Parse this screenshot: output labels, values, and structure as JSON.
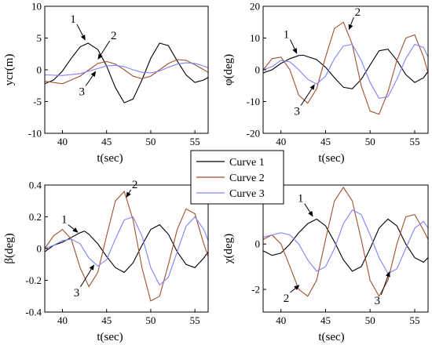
{
  "chart_data": [
    {
      "type": "line",
      "panel": "top-left",
      "xlabel": "t(sec)",
      "ylabel": "ycr(m)",
      "xlim": [
        38,
        56.5
      ],
      "ylim": [
        -10,
        10
      ],
      "xticks": [
        40,
        45,
        50,
        55
      ],
      "yticks": [
        -10,
        -5,
        0,
        5,
        10
      ],
      "series": [
        {
          "label": "1",
          "color": "#000000",
          "x": [
            38,
            39,
            40,
            41,
            42,
            42.9,
            44,
            45,
            46,
            47,
            48,
            49,
            50,
            51,
            52,
            53,
            54,
            55,
            56,
            56.5
          ],
          "y": [
            -2.2,
            -1.6,
            -0.2,
            1.8,
            3.6,
            4.2,
            3.2,
            0.6,
            -2.8,
            -5.2,
            -4.6,
            -1.6,
            1.8,
            4.2,
            3.8,
            1.4,
            -0.8,
            -2.0,
            -1.6,
            -1.2
          ]
        },
        {
          "label": "2",
          "color": "#a0522d",
          "x": [
            38,
            40,
            42,
            43,
            44,
            45,
            46,
            47,
            48,
            49,
            50,
            51,
            52,
            53,
            54,
            55,
            56,
            56.5
          ],
          "y": [
            -1.8,
            -2.2,
            -1.0,
            0.0,
            1.0,
            1.3,
            0.9,
            0.0,
            -1.0,
            -1.4,
            -1.0,
            0.0,
            1.0,
            1.6,
            1.5,
            0.8,
            0.0,
            -0.4
          ]
        },
        {
          "label": "3",
          "color": "#8080ff",
          "x": [
            38,
            40,
            42,
            44,
            45,
            46,
            47,
            48,
            49,
            50,
            51,
            52,
            53,
            54,
            55,
            56,
            56.5
          ],
          "y": [
            -0.8,
            -0.9,
            -0.6,
            0.2,
            0.6,
            0.7,
            0.5,
            0.0,
            -0.4,
            -0.5,
            -0.2,
            0.4,
            0.9,
            1.1,
            1.0,
            0.6,
            0.3
          ]
        }
      ],
      "annotations": [
        {
          "text": "1",
          "x": 41.2,
          "y": 7.4,
          "ax": 42.6,
          "ay": 4.6
        },
        {
          "text": "2",
          "x": 45.8,
          "y": 4.8,
          "ax": 44.0,
          "ay": 1.6
        },
        {
          "text": "3",
          "x": 42.2,
          "y": -4.0,
          "ax": 43.8,
          "ay": -0.2
        }
      ]
    },
    {
      "type": "line",
      "panel": "top-right",
      "xlabel": "t(sec)",
      "ylabel": "φ(deg)",
      "xlim": [
        38,
        56.5
      ],
      "ylim": [
        -20,
        20
      ],
      "xticks": [
        40,
        45,
        50,
        55
      ],
      "yticks": [
        -20,
        -10,
        0,
        10,
        20
      ],
      "series": [
        {
          "label": "1",
          "color": "#000000",
          "x": [
            38,
            39,
            40,
            41,
            42,
            42.5,
            44,
            45,
            46,
            47,
            48,
            49,
            50,
            51,
            52,
            53,
            54,
            55,
            56,
            56.5
          ],
          "y": [
            -1.0,
            0.0,
            2.0,
            3.5,
            4.5,
            4.6,
            3.2,
            0.8,
            -2.5,
            -5.5,
            -6.0,
            -3.0,
            1.5,
            6.0,
            6.5,
            3.0,
            -1.5,
            -4.0,
            -2.5,
            -0.5
          ]
        },
        {
          "label": "2",
          "color": "#a0522d",
          "x": [
            38,
            39,
            40,
            41,
            42,
            43,
            44,
            45,
            46,
            47,
            48,
            49,
            50,
            51,
            52,
            53,
            54,
            55,
            56,
            56.5
          ],
          "y": [
            0.0,
            3.5,
            4.0,
            0.0,
            -8.0,
            -10.5,
            -6.0,
            4.0,
            13.0,
            15.0,
            8.0,
            -5.0,
            -13.0,
            -14.0,
            -7.0,
            3.0,
            10.0,
            11.0,
            4.0,
            -1.0
          ]
        },
        {
          "label": "3",
          "color": "#8080ff",
          "x": [
            38,
            39,
            40,
            41,
            42,
            43,
            44,
            45,
            46,
            47,
            48,
            49,
            50,
            51,
            52,
            53,
            54,
            55,
            56,
            56.5
          ],
          "y": [
            0.0,
            1.0,
            3.0,
            2.5,
            0.0,
            -3.0,
            -4.5,
            -2.0,
            3.5,
            7.5,
            8.0,
            3.0,
            -4.0,
            -9.0,
            -8.5,
            -3.0,
            3.5,
            8.0,
            7.0,
            4.0
          ]
        }
      ],
      "annotations": [
        {
          "text": "1",
          "x": 40.6,
          "y": 10.0,
          "ax": 41.8,
          "ay": 5.0
        },
        {
          "text": "2",
          "x": 48.6,
          "y": 17.0,
          "ax": 47.6,
          "ay": 12.5
        },
        {
          "text": "3",
          "x": 41.8,
          "y": -14.2,
          "ax": 43.8,
          "ay": -4.5
        }
      ]
    },
    {
      "type": "line",
      "panel": "bottom-left",
      "xlabel": "t(sec)",
      "ylabel": "β(deg)",
      "xlim": [
        38,
        56.5
      ],
      "ylim": [
        -0.4,
        0.4
      ],
      "xticks": [
        40,
        45,
        50,
        55
      ],
      "yticks": [
        -0.4,
        -0.2,
        0,
        0.2,
        0.4
      ],
      "series": [
        {
          "label": "1",
          "color": "#000000",
          "x": [
            38,
            39,
            40,
            41,
            42,
            42.5,
            43,
            44,
            45,
            46,
            47,
            48,
            49,
            50,
            51,
            52,
            53,
            54,
            55,
            56,
            56.5
          ],
          "y": [
            -0.02,
            0.02,
            0.04,
            0.07,
            0.1,
            0.11,
            0.09,
            0.03,
            -0.05,
            -0.12,
            -0.15,
            -0.09,
            0.02,
            0.12,
            0.15,
            0.09,
            -0.02,
            -0.1,
            -0.12,
            -0.06,
            -0.02
          ]
        },
        {
          "label": "2",
          "color": "#a0522d",
          "x": [
            38,
            39,
            40,
            41,
            42,
            43,
            44,
            45,
            46,
            47,
            48,
            49,
            50,
            51,
            52,
            53,
            54,
            55,
            56,
            56.5
          ],
          "y": [
            0.0,
            0.08,
            0.12,
            0.06,
            -0.12,
            -0.24,
            -0.15,
            0.08,
            0.3,
            0.36,
            0.18,
            -0.12,
            -0.33,
            -0.3,
            -0.1,
            0.12,
            0.25,
            0.22,
            0.03,
            -0.05
          ]
        },
        {
          "label": "3",
          "color": "#8080ff",
          "x": [
            38,
            39,
            40,
            41,
            42,
            43,
            44,
            45,
            46,
            47,
            48,
            49,
            50,
            51,
            52,
            53,
            54,
            55,
            56,
            56.5
          ],
          "y": [
            0.0,
            0.02,
            0.05,
            0.06,
            0.03,
            -0.06,
            -0.11,
            -0.07,
            0.06,
            0.18,
            0.2,
            0.08,
            -0.12,
            -0.23,
            -0.18,
            -0.02,
            0.14,
            0.2,
            0.12,
            0.05
          ]
        }
      ],
      "annotations": [
        {
          "text": "1",
          "x": 40.2,
          "y": 0.16,
          "ax": 41.8,
          "ay": 0.1
        },
        {
          "text": "2",
          "x": 48.2,
          "y": 0.38,
          "ax": 47.2,
          "ay": 0.32
        },
        {
          "text": "3",
          "x": 41.6,
          "y": -0.3,
          "ax": 43.6,
          "ay": -0.1
        }
      ]
    },
    {
      "type": "line",
      "panel": "bottom-right",
      "xlabel": "t(sec)",
      "ylabel": "χ(deg)",
      "xlim": [
        38,
        56.5
      ],
      "ylim": [
        -3,
        2.6
      ],
      "xticks": [
        40,
        45,
        50,
        55
      ],
      "yticks": [
        -2,
        0,
        2
      ],
      "series": [
        {
          "label": "1",
          "color": "#000000",
          "x": [
            38,
            39,
            40,
            41,
            42,
            43,
            44,
            45,
            46,
            47,
            48,
            49,
            50,
            51,
            52,
            53,
            54,
            55,
            56,
            56.5
          ],
          "y": [
            -0.3,
            -0.5,
            -0.4,
            0.0,
            0.5,
            0.9,
            1.1,
            0.8,
            0.1,
            -0.7,
            -1.2,
            -1.0,
            -0.2,
            0.7,
            1.1,
            0.8,
            0.0,
            -0.6,
            -0.8,
            -0.6
          ]
        },
        {
          "label": "2",
          "color": "#a0522d",
          "x": [
            38,
            39,
            40,
            41,
            42,
            43,
            44,
            45,
            46,
            47,
            48,
            49,
            50,
            51,
            52,
            53,
            54,
            55,
            56,
            56.5
          ],
          "y": [
            0.2,
            0.4,
            0.0,
            -1.0,
            -2.0,
            -2.3,
            -1.6,
            0.2,
            1.9,
            2.5,
            1.9,
            0.2,
            -1.6,
            -2.3,
            -1.6,
            0.0,
            1.2,
            1.3,
            0.6,
            0.2
          ]
        },
        {
          "label": "3",
          "color": "#8080ff",
          "x": [
            38,
            39,
            40,
            41,
            42,
            43,
            44,
            45,
            46,
            47,
            48,
            49,
            50,
            51,
            52,
            53,
            54,
            55,
            56,
            56.5
          ],
          "y": [
            0.3,
            0.4,
            0.5,
            0.4,
            0.0,
            -0.7,
            -1.2,
            -1.0,
            -0.2,
            0.9,
            1.5,
            1.3,
            0.4,
            -0.6,
            -1.3,
            -1.1,
            -0.2,
            0.7,
            1.0,
            0.7
          ]
        }
      ],
      "annotations": [
        {
          "text": "1",
          "x": 42.2,
          "y": 1.85,
          "ax": 43.6,
          "ay": 1.2
        },
        {
          "text": "2",
          "x": 40.6,
          "y": -2.55,
          "ax": 42.1,
          "ay": -1.8
        },
        {
          "text": "3",
          "x": 50.8,
          "y": -2.65,
          "ax": 52.2,
          "ay": -1.2
        }
      ]
    }
  ],
  "legend": {
    "placement": "center",
    "entries": [
      {
        "label": "Curve 1",
        "color": "#000000"
      },
      {
        "label": "Curve 2",
        "color": "#a0522d"
      },
      {
        "label": "Curve 3",
        "color": "#8080ff"
      }
    ]
  }
}
